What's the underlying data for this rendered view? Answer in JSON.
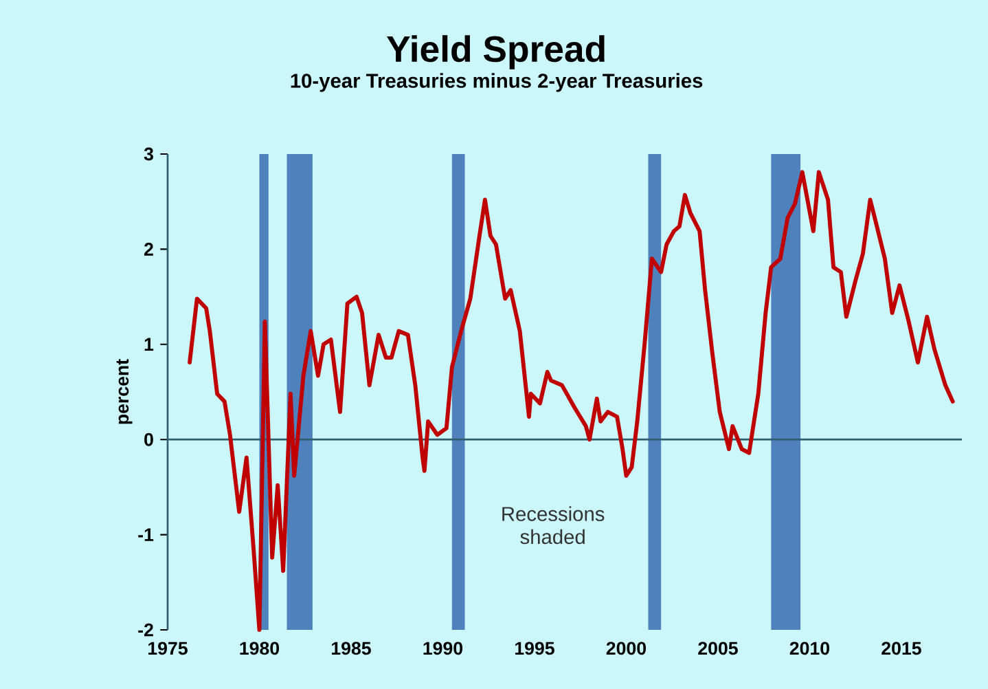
{
  "chart_data": {
    "type": "line",
    "title": "Yield Spread",
    "subtitle": "10-year Treasuries minus 2-year Treasuries",
    "ylabel": "percent",
    "x": [
      1976.2,
      1976.6,
      1977.1,
      1977.3,
      1977.7,
      1978.1,
      1978.4,
      1978.9,
      1979.3,
      1979.7,
      1980.0,
      1980.3,
      1980.7,
      1981.0,
      1981.3,
      1981.7,
      1981.9,
      1982.4,
      1982.8,
      1983.2,
      1983.5,
      1983.9,
      1984.4,
      1984.8,
      1985.3,
      1985.6,
      1986.0,
      1986.5,
      1986.9,
      1987.2,
      1987.6,
      1988.1,
      1988.5,
      1988.9,
      1989.0,
      1989.2,
      1989.7,
      1990.2,
      1990.5,
      1991.0,
      1991.5,
      1992.0,
      1992.3,
      1992.6,
      1992.9,
      1993.4,
      1993.7,
      1994.2,
      1994.7,
      1994.8,
      1995.3,
      1995.7,
      1995.9,
      1996.5,
      1997.2,
      1997.8,
      1998.0,
      1998.4,
      1998.6,
      1999.0,
      1999.5,
      1999.8,
      2000.0,
      2000.3,
      2000.6,
      2001.0,
      2001.4,
      2001.9,
      2002.2,
      2002.6,
      2002.9,
      2003.2,
      2003.5,
      2004.0,
      2004.3,
      2004.7,
      2005.1,
      2005.6,
      2005.8,
      2006.3,
      2006.7,
      2007.2,
      2007.6,
      2007.9,
      2008.4,
      2008.8,
      2009.2,
      2009.6,
      2010.2,
      2010.5,
      2011.0,
      2011.3,
      2011.7,
      2012.0,
      2012.5,
      2012.9,
      2013.3,
      2013.6,
      2014.1,
      2014.5,
      2014.9,
      2015.4,
      2015.9,
      2016.4,
      2016.8,
      2017.4,
      2017.8
    ],
    "series": [
      {
        "color": "#c00000",
        "values": [
          0.81,
          1.48,
          1.38,
          1.14,
          0.48,
          0.4,
          0.05,
          -0.76,
          -0.19,
          -1.19,
          -2.0,
          1.24,
          -1.24,
          -0.48,
          -1.38,
          0.48,
          -0.38,
          0.67,
          1.14,
          0.67,
          1.0,
          1.05,
          0.29,
          1.43,
          1.5,
          1.33,
          0.57,
          1.1,
          0.86,
          0.86,
          1.14,
          1.1,
          0.57,
          -0.19,
          -0.33,
          0.19,
          0.05,
          0.12,
          0.76,
          1.14,
          1.48,
          2.14,
          2.52,
          2.14,
          2.05,
          1.48,
          1.57,
          1.14,
          0.24,
          0.48,
          0.38,
          0.71,
          0.62,
          0.57,
          0.33,
          0.14,
          0.0,
          0.43,
          0.19,
          0.29,
          0.24,
          -0.1,
          -0.38,
          -0.29,
          0.19,
          1.0,
          1.9,
          1.76,
          2.05,
          2.19,
          2.24,
          2.57,
          2.38,
          2.19,
          1.57,
          0.9,
          0.29,
          -0.1,
          0.14,
          -0.1,
          -0.14,
          0.48,
          1.33,
          1.81,
          1.9,
          2.33,
          2.48,
          2.81,
          2.19,
          2.81,
          2.52,
          1.81,
          1.76,
          1.29,
          1.67,
          1.95,
          2.52,
          2.29,
          1.9,
          1.33,
          1.62,
          1.24,
          0.81,
          1.29,
          0.95,
          0.57,
          0.4
        ]
      }
    ],
    "xlim": [
      1975,
      2018.3
    ],
    "ylim": [
      -2,
      3
    ],
    "xticks": [
      1975,
      1980,
      1985,
      1990,
      1995,
      2000,
      2005,
      2010,
      2015
    ],
    "yticks": [
      -2,
      -1,
      0,
      1,
      2,
      3
    ],
    "ref_lines": [
      {
        "axis": "y",
        "value": 0,
        "color": "#2f5f6f"
      }
    ],
    "bands": [
      {
        "axis": "x",
        "from": 1980.0,
        "to": 1980.5,
        "color": "#4f81bd"
      },
      {
        "axis": "x",
        "from": 1981.5,
        "to": 1982.9,
        "color": "#4f81bd"
      },
      {
        "axis": "x",
        "from": 1990.5,
        "to": 1991.2,
        "color": "#4f81bd"
      },
      {
        "axis": "x",
        "from": 2001.2,
        "to": 2001.9,
        "color": "#4f81bd"
      },
      {
        "axis": "x",
        "from": 2007.9,
        "to": 2009.5,
        "color": "#4f81bd"
      }
    ],
    "annotations": [
      "Recessions shaded"
    ],
    "grid": false,
    "marker": "none",
    "line_style": "solid"
  }
}
